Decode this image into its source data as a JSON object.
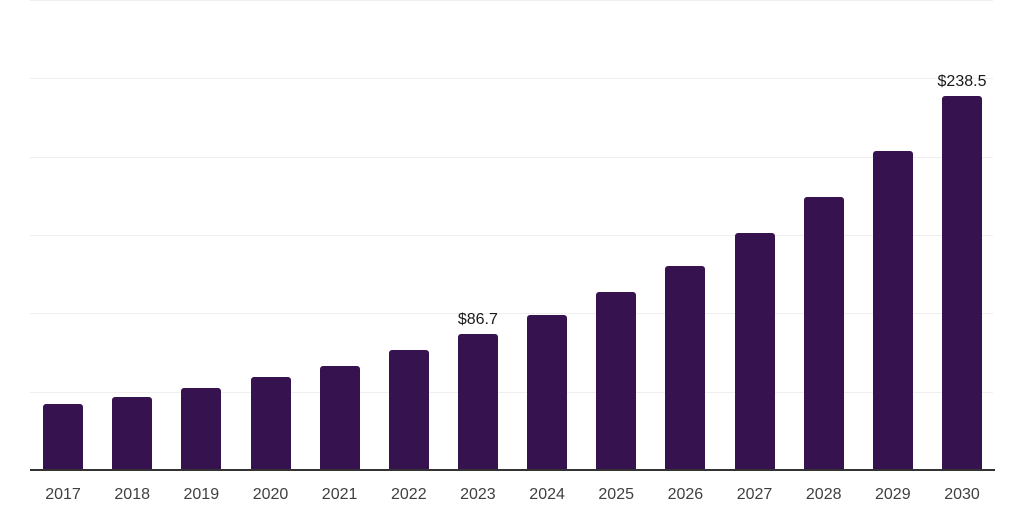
{
  "chart_data": {
    "type": "bar",
    "categories": [
      "2017",
      "2018",
      "2019",
      "2020",
      "2021",
      "2022",
      "2023",
      "2024",
      "2025",
      "2026",
      "2027",
      "2028",
      "2029",
      "2030"
    ],
    "values": [
      42.1,
      46.8,
      52.4,
      59.5,
      66.5,
      76.5,
      86.7,
      99.0,
      113.7,
      130.3,
      151.3,
      174.5,
      203.7,
      238.5
    ],
    "value_labels": [
      "",
      "",
      "",
      "",
      "",
      "",
      "$86.7",
      "",
      "",
      "",
      "",
      "",
      "",
      "$238.5"
    ],
    "ylim": [
      0,
      300
    ],
    "gridline_step": 50,
    "grid": true,
    "y_axis_tick_labels_visible": false,
    "legend": null,
    "title": "",
    "xlabel": "",
    "ylabel": "",
    "colors": {
      "bar_fill": "#36124E",
      "value_label_text": "#1a1a1a",
      "x_tick_text": "#404040",
      "gridline": "#efefef",
      "axis_line": "#333333",
      "background": "#ffffff"
    }
  }
}
